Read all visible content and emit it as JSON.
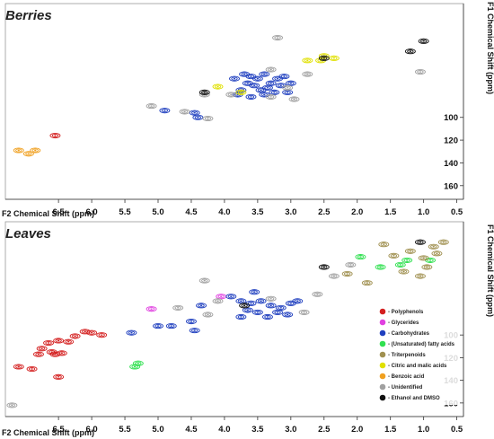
{
  "chart_data": [
    {
      "type": "scatter",
      "subtype": "2D NMR contour map",
      "title": "Berries",
      "xlabel": "F2 Chemical Shift (ppm)",
      "ylabel": "F1 Chemical Shift (ppm)",
      "xlim": [
        7.3,
        0.4
      ],
      "ylim": [
        0,
        172
      ],
      "x_reversed": true,
      "y_reversed": true,
      "xticks": [
        6.5,
        6.0,
        5.5,
        5.0,
        4.5,
        4.0,
        3.5,
        3.0,
        2.5,
        2.0,
        1.5,
        1.0,
        0.5
      ],
      "xtick_labels": [
        "6.5",
        "6.0",
        "5.5",
        "5.0",
        "4.5",
        "4.0",
        "3.5",
        "3.0",
        "2.5",
        "2.0",
        "1.5",
        "1.0",
        "0.5"
      ],
      "yticks": [
        100,
        120,
        140,
        160
      ],
      "ytick_labels": [
        "100",
        "120",
        "140",
        "160"
      ],
      "series": [
        {
          "class": "carbohydrates",
          "color": "#1f3fbf",
          "points": [
            [
              3.85,
              66
            ],
            [
              3.7,
              62
            ],
            [
              3.6,
              64
            ],
            [
              3.5,
              66
            ],
            [
              3.4,
              62
            ],
            [
              3.3,
              70
            ],
            [
              3.2,
              66
            ],
            [
              3.1,
              64
            ],
            [
              3.55,
              72
            ],
            [
              3.45,
              76
            ],
            [
              3.75,
              76
            ],
            [
              3.65,
              70
            ],
            [
              3.35,
              74
            ],
            [
              3.25,
              78
            ],
            [
              3.15,
              72
            ],
            [
              3.05,
              78
            ],
            [
              3.8,
              80
            ],
            [
              3.6,
              82
            ],
            [
              3.4,
              80
            ],
            [
              3.0,
              70
            ],
            [
              4.9,
              94
            ],
            [
              4.4,
              100
            ],
            [
              4.45,
              96
            ]
          ]
        },
        {
          "class": "unidentified",
          "color": "#a0a0a0",
          "points": [
            [
              3.3,
              58
            ],
            [
              3.9,
              80
            ],
            [
              3.3,
              82
            ],
            [
              3.05,
              74
            ],
            [
              4.3,
              80
            ],
            [
              2.75,
              62
            ],
            [
              2.95,
              84
            ],
            [
              5.1,
              90
            ],
            [
              4.6,
              95
            ],
            [
              4.25,
              101
            ],
            [
              1.05,
              60
            ],
            [
              3.2,
              30
            ]
          ]
        },
        {
          "class": "citric-malic",
          "color": "#e0e000",
          "points": [
            [
              2.75,
              50
            ],
            [
              2.5,
              46
            ],
            [
              2.55,
              50
            ],
            [
              2.35,
              48
            ],
            [
              4.1,
              73
            ],
            [
              3.75,
              78
            ]
          ]
        },
        {
          "class": "ethanol-dmso",
          "color": "#111111",
          "points": [
            [
              1.0,
              33
            ],
            [
              1.2,
              42
            ],
            [
              2.5,
              48
            ],
            [
              4.3,
              78
            ]
          ]
        },
        {
          "class": "benzoic-acid",
          "color": "#f0a020",
          "points": [
            [
              7.1,
              129
            ],
            [
              6.95,
              132
            ],
            [
              6.85,
              129
            ]
          ]
        },
        {
          "class": "polyphenols",
          "color": "#d42020",
          "points": [
            [
              6.55,
              116
            ]
          ]
        }
      ]
    },
    {
      "type": "scatter",
      "subtype": "2D NMR contour map",
      "title": "Leaves",
      "xlabel": "F2 Chemical Shift (ppm)",
      "ylabel": "F1 Chemical Shift (ppm)",
      "xlim": [
        7.3,
        0.4
      ],
      "ylim": [
        0,
        172
      ],
      "x_reversed": true,
      "y_reversed": true,
      "xticks": [
        6.5,
        6.0,
        5.5,
        5.0,
        4.5,
        4.0,
        3.5,
        3.0,
        2.5,
        2.0,
        1.5,
        1.0,
        0.5
      ],
      "xtick_labels": [
        "6.5",
        "6.0",
        "5.5",
        "5.0",
        "4.5",
        "4.0",
        "3.5",
        "3.0",
        "2.5",
        "2.0",
        "1.5",
        "1.0",
        "0.5"
      ],
      "yticks": [
        100,
        120,
        140,
        160
      ],
      "ytick_labels": [
        "100",
        "120",
        "140",
        "160"
      ],
      "legend_position": "lower-right",
      "legend": [
        {
          "label": "- Polyphenols",
          "color": "#d42020"
        },
        {
          "label": "- Glycerides",
          "color": "#e040e0"
        },
        {
          "label": "- Carbohydrates",
          "color": "#1f3fbf"
        },
        {
          "label": "- (Unsaturated) fatty acids",
          "color": "#30e050"
        },
        {
          "label": "- Triterpenoids",
          "color": "#a09050"
        },
        {
          "label": "- Citric and malic acids",
          "color": "#e0e000"
        },
        {
          "label": "- Benzoic acid",
          "color": "#f0a020"
        },
        {
          "label": "- Unidentified",
          "color": "#a0a0a0"
        },
        {
          "label": "- Ethanol and DMSO",
          "color": "#111111"
        }
      ],
      "series": [
        {
          "class": "polyphenols",
          "color": "#d42020",
          "points": [
            [
              6.6,
              115
            ],
            [
              6.55,
              117
            ],
            [
              6.45,
              116
            ],
            [
              6.75,
              112
            ],
            [
              6.8,
              117
            ],
            [
              6.65,
              107
            ],
            [
              6.5,
              105
            ],
            [
              6.1,
              97
            ],
            [
              6.0,
              98
            ],
            [
              5.85,
              100
            ],
            [
              6.35,
              106
            ],
            [
              6.25,
              101
            ],
            [
              7.1,
              128
            ],
            [
              6.9,
              130
            ],
            [
              6.5,
              137
            ]
          ]
        },
        {
          "class": "glycerides",
          "color": "#e040e0",
          "points": [
            [
              4.05,
              66
            ],
            [
              5.1,
              77
            ]
          ]
        },
        {
          "class": "carbohydrates",
          "color": "#1f3fbf",
          "points": [
            [
              3.9,
              66
            ],
            [
              3.75,
              70
            ],
            [
              3.6,
              72
            ],
            [
              3.45,
              70
            ],
            [
              3.3,
              74
            ],
            [
              3.15,
              76
            ],
            [
              3.0,
              72
            ],
            [
              3.65,
              78
            ],
            [
              3.5,
              80
            ],
            [
              3.35,
              84
            ],
            [
              3.2,
              80
            ],
            [
              3.05,
              82
            ],
            [
              3.75,
              84
            ],
            [
              2.9,
              70
            ],
            [
              3.55,
              62
            ],
            [
              4.35,
              74
            ],
            [
              5.0,
              92
            ],
            [
              4.8,
              92
            ],
            [
              4.5,
              88
            ],
            [
              4.45,
              96
            ],
            [
              5.4,
              98
            ]
          ]
        },
        {
          "class": "fatty-acids",
          "color": "#30e050",
          "points": [
            [
              1.95,
              31
            ],
            [
              1.35,
              38
            ],
            [
              1.25,
              34
            ],
            [
              0.9,
              34
            ],
            [
              1.65,
              40
            ],
            [
              5.3,
              125
            ],
            [
              5.35,
              128
            ]
          ]
        },
        {
          "class": "triterpenoids",
          "color": "#a09050",
          "points": [
            [
              1.6,
              20
            ],
            [
              1.2,
              26
            ],
            [
              0.85,
              22
            ],
            [
              0.7,
              18
            ],
            [
              1.0,
              32
            ],
            [
              1.45,
              30
            ],
            [
              0.95,
              40
            ],
            [
              1.3,
              44
            ],
            [
              1.85,
              54
            ],
            [
              2.15,
              46
            ],
            [
              1.05,
              48
            ],
            [
              0.8,
              28
            ]
          ]
        },
        {
          "class": "ethanol-dmso",
          "color": "#111111",
          "points": [
            [
              2.5,
              40
            ],
            [
              1.05,
              18
            ],
            [
              3.7,
              74
            ]
          ]
        },
        {
          "class": "unidentified",
          "color": "#a0a0a0",
          "points": [
            [
              2.1,
              38
            ],
            [
              3.3,
              68
            ],
            [
              4.1,
              70
            ],
            [
              4.7,
              76
            ],
            [
              2.8,
              80
            ],
            [
              2.35,
              48
            ],
            [
              4.25,
              82
            ],
            [
              7.2,
              162
            ],
            [
              4.3,
              52
            ],
            [
              2.6,
              64
            ]
          ]
        }
      ]
    }
  ]
}
